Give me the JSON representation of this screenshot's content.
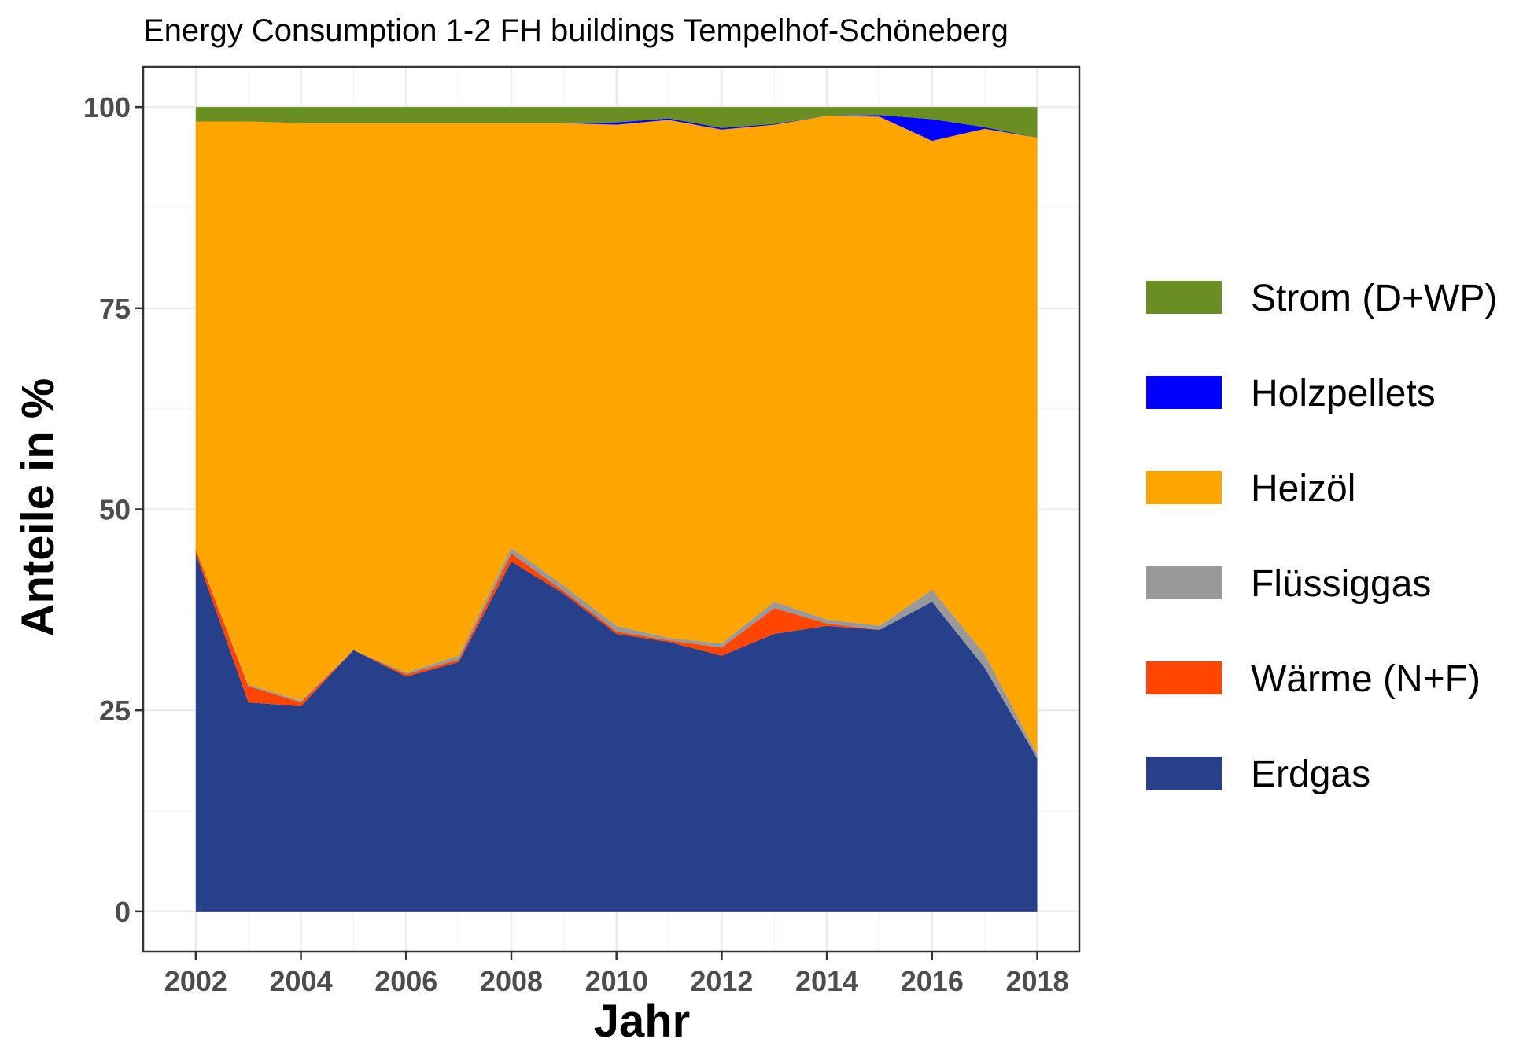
{
  "chart_data": {
    "type": "area",
    "stacked": true,
    "title": "Energy Consumption 1-2 FH buildings Tempelhof-Schöneberg",
    "xlabel": "Jahr",
    "ylabel": "Anteile in %",
    "xlim": [
      2001.0,
      2018.8
    ],
    "ylim": [
      -5,
      105
    ],
    "x_ticks": [
      2002,
      2004,
      2006,
      2008,
      2010,
      2012,
      2014,
      2016,
      2018
    ],
    "y_ticks": [
      0,
      25,
      50,
      75,
      100
    ],
    "grid": true,
    "legend_position": "right",
    "x": [
      2002,
      2003,
      2004,
      2005,
      2006,
      2007,
      2008,
      2009,
      2010,
      2011,
      2012,
      2013,
      2014,
      2015,
      2016,
      2017,
      2018
    ],
    "series": [
      {
        "name": "Erdgas",
        "color": "#27408b",
        "values": [
          44.5,
          26.0,
          25.5,
          32.5,
          29.2,
          31.0,
          43.5,
          39.5,
          34.5,
          33.5,
          31.8,
          34.5,
          35.5,
          35.0,
          38.5,
          30.3,
          19.0
        ]
      },
      {
        "name": "Wärme (N+F)",
        "color": "#ff4500",
        "values": [
          0.5,
          2.0,
          0.5,
          0.0,
          0.3,
          0.3,
          1.0,
          0.3,
          0.3,
          0.2,
          1.0,
          3.2,
          0.3,
          0.0,
          0.0,
          0.0,
          0.0
        ]
      },
      {
        "name": "Flüssiggas",
        "color": "#999999",
        "values": [
          0.0,
          0.2,
          0.2,
          0.0,
          0.2,
          0.5,
          0.7,
          0.7,
          0.7,
          0.3,
          0.5,
          0.8,
          0.5,
          0.5,
          1.5,
          1.7,
          0.5
        ]
      },
      {
        "name": "Heizöl",
        "color": "#ffa500",
        "values": [
          53.2,
          70.0,
          71.8,
          65.5,
          68.3,
          66.2,
          52.8,
          57.5,
          62.3,
          64.4,
          63.9,
          59.3,
          62.6,
          63.3,
          55.8,
          65.3,
          76.7
        ]
      },
      {
        "name": "Holzpellets",
        "color": "#0000ff",
        "values": [
          0.0,
          0.0,
          0.0,
          0.0,
          0.0,
          0.0,
          0.0,
          0.0,
          0.3,
          0.2,
          0.2,
          0.1,
          0.0,
          0.2,
          2.7,
          0.2,
          0.0
        ]
      },
      {
        "name": "Strom (D+WP)",
        "color": "#6b8e23",
        "values": [
          1.8,
          1.8,
          2.0,
          2.0,
          2.0,
          2.0,
          2.0,
          2.0,
          1.9,
          1.4,
          2.6,
          2.1,
          1.1,
          1.0,
          1.5,
          2.5,
          3.8
        ]
      }
    ]
  },
  "legend_order": [
    "Strom (D+WP)",
    "Holzpellets",
    "Heizöl",
    "Flüssiggas",
    "Wärme (N+F)",
    "Erdgas"
  ],
  "colors": {
    "panel_border": "#333333",
    "grid_major": "#ebebeb",
    "grid_minor": "#f5f5f5",
    "tick_text": "#4d4d4d"
  }
}
